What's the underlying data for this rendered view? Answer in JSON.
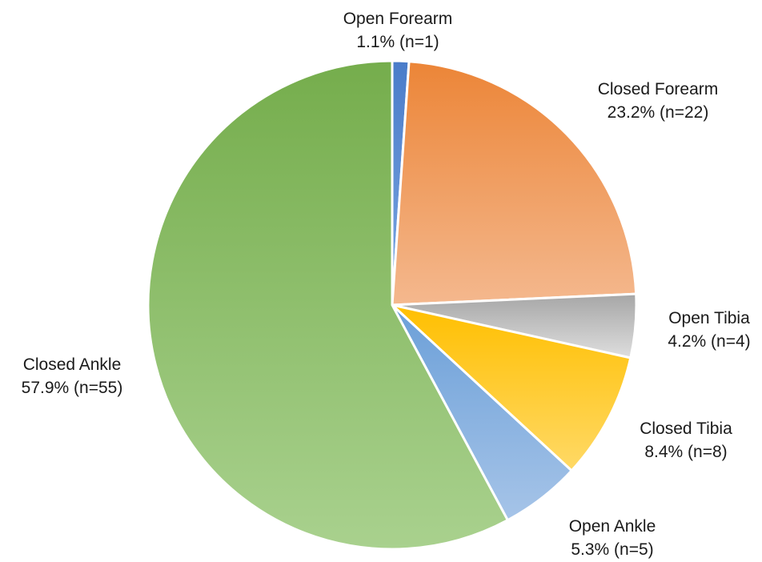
{
  "chart_data": {
    "type": "pie",
    "title": "",
    "start_angle_deg": 0,
    "direction": "clockwise",
    "slices": [
      {
        "category": "Open Forearm",
        "value": 1.1,
        "value_label": "1.1% (n=1)",
        "count": 1,
        "color_top": "#4a7cc9",
        "color_bottom": "#7aa6e2",
        "gradient": "radial"
      },
      {
        "category": "Closed Forearm",
        "value": 23.2,
        "value_label": "23.2% (n=22)",
        "count": 22,
        "color_top": "#ec8537",
        "color_bottom": "#f4b88e",
        "gradient": "vertical"
      },
      {
        "category": "Open Tibia",
        "value": 4.2,
        "value_label": "4.2% (n=4)",
        "count": 4,
        "color_top": "#a6a6a6",
        "color_bottom": "#dedede",
        "gradient": "vertical"
      },
      {
        "category": "Closed Tibia",
        "value": 8.4,
        "value_label": "8.4% (n=8)",
        "count": 8,
        "color_top": "#ffbf00",
        "color_bottom": "#ffd966",
        "gradient": "vertical"
      },
      {
        "category": "Open Ankle",
        "value": 5.3,
        "value_label": "5.3% (n=5)",
        "count": 5,
        "color_top": "#6b9fd8",
        "color_bottom": "#a6c4e8",
        "gradient": "vertical"
      },
      {
        "category": "Closed Ankle",
        "value": 57.9,
        "value_label": "57.9% (n=55)",
        "count": 55,
        "color_top": "#75ad4c",
        "color_bottom": "#a9d18e",
        "gradient": "vertical"
      }
    ]
  }
}
